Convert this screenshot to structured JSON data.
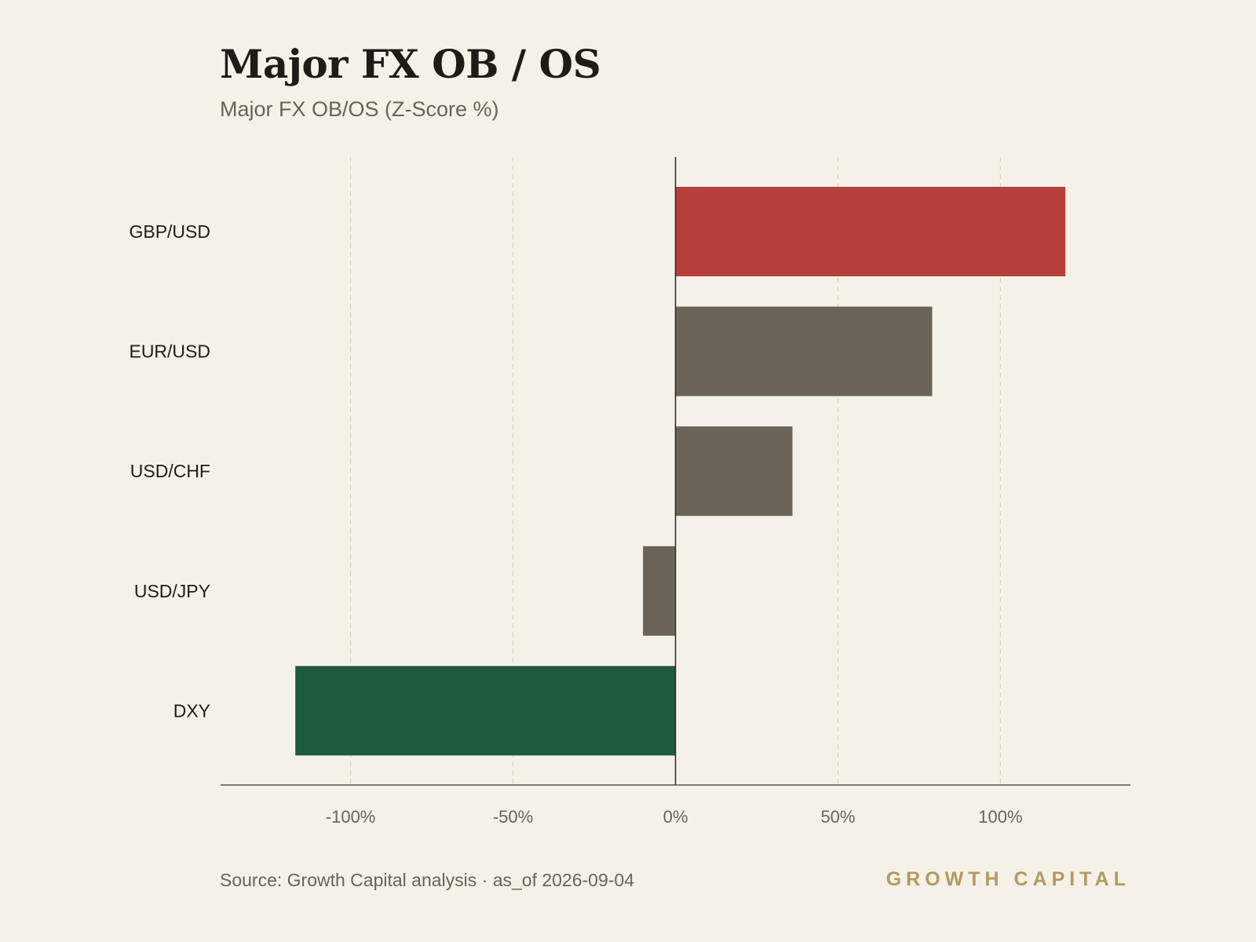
{
  "chart_data": {
    "type": "bar",
    "orientation": "horizontal",
    "title": "Major FX OB / OS",
    "subtitle": "Major FX OB/OS (Z-Score %)",
    "categories": [
      "GBP/USD",
      "EUR/USD",
      "USD/CHF",
      "USD/JPY",
      "DXY"
    ],
    "values": [
      120,
      79,
      36,
      -10,
      -117
    ],
    "bar_colors": [
      "#b5403c",
      "#6b6357",
      "#6b6357",
      "#6b6357",
      "#1f5a3c"
    ],
    "xlim": [
      -140,
      140
    ],
    "x_ticks": [
      -100,
      -50,
      0,
      50,
      100
    ],
    "x_tick_labels": [
      "-100%",
      "-50%",
      "0%",
      "50%",
      "100%"
    ],
    "grid": "vertical dashed at ±100%",
    "zero_line": true
  },
  "footer": {
    "source": "Source: Growth Capital analysis · as_of 2026-09-04",
    "brand": "GROWTH CAPITAL"
  },
  "colors": {
    "background": "#f5f1e9",
    "text_dark": "#1f1c17",
    "text_muted": "#6b6257",
    "gridline": "#d6d0bf",
    "brand": "#b39a5f"
  }
}
